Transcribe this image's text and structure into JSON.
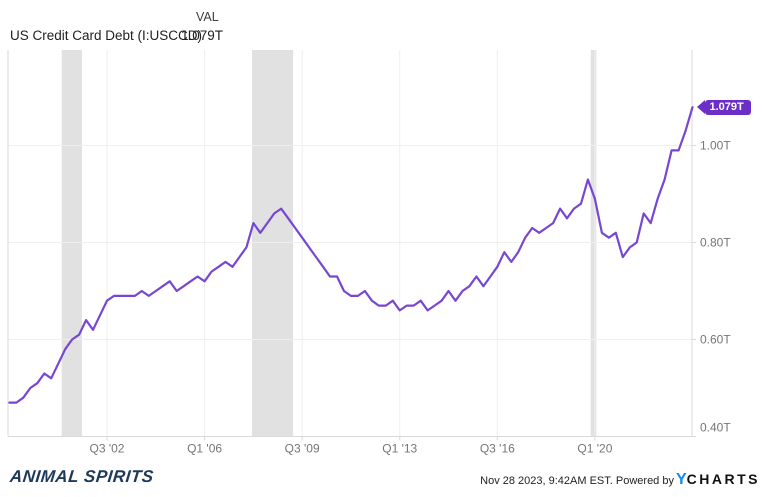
{
  "header": {
    "title": "US Credit Card Debt (I:USCCD)",
    "value_label": "VAL",
    "current_value": "1.079T"
  },
  "chart_data": {
    "type": "line",
    "title": "US Credit Card Debt (I:USCCD)",
    "series_name": "US Credit Card Debt",
    "unit": "trillions USD",
    "legend_position": "none",
    "grid": true,
    "ylim": [
      0.4,
      1.197
    ],
    "last_value_label": "1.079T",
    "x": [
      "Q1 '99",
      "Q2 '99",
      "Q3 '99",
      "Q4 '99",
      "Q1 '00",
      "Q2 '00",
      "Q3 '00",
      "Q4 '00",
      "Q1 '01",
      "Q2 '01",
      "Q3 '01",
      "Q4 '01",
      "Q1 '02",
      "Q2 '02",
      "Q3 '02",
      "Q4 '02",
      "Q1 '03",
      "Q2 '03",
      "Q3 '03",
      "Q4 '03",
      "Q1 '04",
      "Q2 '04",
      "Q3 '04",
      "Q4 '04",
      "Q1 '05",
      "Q2 '05",
      "Q3 '05",
      "Q4 '05",
      "Q1 '06",
      "Q2 '06",
      "Q3 '06",
      "Q4 '06",
      "Q1 '07",
      "Q2 '07",
      "Q3 '07",
      "Q4 '07",
      "Q1 '08",
      "Q2 '08",
      "Q3 '08",
      "Q4 '08",
      "Q1 '09",
      "Q2 '09",
      "Q3 '09",
      "Q4 '09",
      "Q1 '10",
      "Q2 '10",
      "Q3 '10",
      "Q4 '10",
      "Q1 '11",
      "Q2 '11",
      "Q3 '11",
      "Q4 '11",
      "Q1 '12",
      "Q2 '12",
      "Q3 '12",
      "Q4 '12",
      "Q1 '13",
      "Q2 '13",
      "Q3 '13",
      "Q4 '13",
      "Q1 '14",
      "Q2 '14",
      "Q3 '14",
      "Q4 '14",
      "Q1 '15",
      "Q2 '15",
      "Q3 '15",
      "Q4 '15",
      "Q1 '16",
      "Q2 '16",
      "Q3 '16",
      "Q4 '16",
      "Q1 '17",
      "Q2 '17",
      "Q3 '17",
      "Q4 '17",
      "Q1 '18",
      "Q2 '18",
      "Q3 '18",
      "Q4 '18",
      "Q1 '19",
      "Q2 '19",
      "Q3 '19",
      "Q4 '19",
      "Q1 '20",
      "Q2 '20",
      "Q3 '20",
      "Q4 '20",
      "Q1 '21",
      "Q2 '21",
      "Q3 '21",
      "Q4 '21",
      "Q1 '22",
      "Q2 '22",
      "Q3 '22",
      "Q4 '22",
      "Q1 '23",
      "Q2 '23",
      "Q3 '23"
    ],
    "values": [
      0.47,
      0.47,
      0.48,
      0.5,
      0.51,
      0.53,
      0.52,
      0.55,
      0.58,
      0.6,
      0.61,
      0.64,
      0.62,
      0.65,
      0.68,
      0.69,
      0.69,
      0.69,
      0.69,
      0.7,
      0.69,
      0.7,
      0.71,
      0.72,
      0.7,
      0.71,
      0.72,
      0.73,
      0.72,
      0.74,
      0.75,
      0.76,
      0.75,
      0.77,
      0.79,
      0.84,
      0.82,
      0.84,
      0.86,
      0.87,
      0.85,
      0.83,
      0.81,
      0.79,
      0.77,
      0.75,
      0.73,
      0.73,
      0.7,
      0.69,
      0.69,
      0.7,
      0.68,
      0.67,
      0.67,
      0.68,
      0.66,
      0.67,
      0.67,
      0.68,
      0.66,
      0.67,
      0.68,
      0.7,
      0.68,
      0.7,
      0.71,
      0.73,
      0.71,
      0.73,
      0.75,
      0.78,
      0.76,
      0.78,
      0.81,
      0.83,
      0.82,
      0.83,
      0.84,
      0.87,
      0.85,
      0.87,
      0.88,
      0.93,
      0.89,
      0.82,
      0.81,
      0.82,
      0.77,
      0.79,
      0.8,
      0.86,
      0.84,
      0.89,
      0.93,
      0.99,
      0.99,
      1.03,
      1.079
    ],
    "y_ticks": [
      {
        "label": "0.40T",
        "value": 0.4
      },
      {
        "label": "0.60T",
        "value": 0.6
      },
      {
        "label": "0.80T",
        "value": 0.8
      },
      {
        "label": "1.00T",
        "value": 1.0
      }
    ],
    "x_ticks": [
      {
        "label": "Q3 '02",
        "index": 14
      },
      {
        "label": "Q1 '06",
        "index": 28
      },
      {
        "label": "Q3 '09",
        "index": 42
      },
      {
        "label": "Q1 '13",
        "index": 56
      },
      {
        "label": "Q3 '16",
        "index": 70
      },
      {
        "label": "Q1 '20",
        "index": 84
      }
    ],
    "recession_bands": [
      {
        "start": 7.5,
        "end": 10.4
      },
      {
        "start": 34.8,
        "end": 40.7
      },
      {
        "start": 83.4,
        "end": 84.2
      }
    ],
    "colors": {
      "line": "#7847d2",
      "band": "#e1e1e1",
      "grid": "#efefef",
      "axis": "#d9d9d9",
      "tick_text": "#757575",
      "badge": "#6b2fc8"
    }
  },
  "footer": {
    "brand": "ANIMAL SPIRITS",
    "attribution_text": "Nov 28 2023, 9:42AM EST. Powered by",
    "ycharts_y": "Y",
    "ycharts_rest": "CHARTS"
  }
}
